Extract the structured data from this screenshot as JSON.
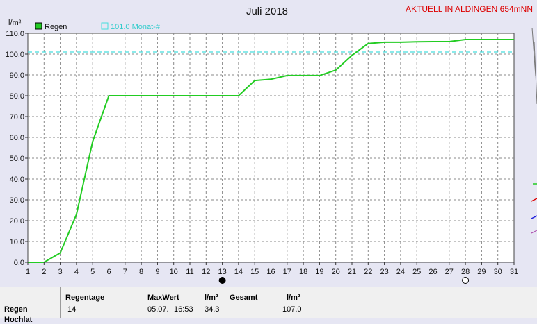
{
  "chart_data": {
    "type": "line",
    "title": "Juli 2018",
    "station_label": "AKTUELL IN ALDINGEN 654mNN",
    "ylabel": "l/m²",
    "ylim": [
      0,
      110
    ],
    "yticks": [
      "0.0",
      "10.0",
      "20.0",
      "30.0",
      "40.0",
      "50.0",
      "60.0",
      "70.0",
      "80.0",
      "90.0",
      "100.0",
      "110.0"
    ],
    "xlim": [
      1,
      31
    ],
    "xticks": [
      "1",
      "2",
      "3",
      "4",
      "5",
      "6",
      "7",
      "8",
      "9",
      "10",
      "11",
      "12",
      "13",
      "14",
      "15",
      "16",
      "17",
      "18",
      "19",
      "20",
      "21",
      "22",
      "23",
      "24",
      "25",
      "26",
      "27",
      "28",
      "29",
      "30",
      "31"
    ],
    "grid": true,
    "legend_position": "top-left",
    "series": [
      {
        "name": "Regen",
        "color": "#22cc22",
        "x": [
          1,
          2,
          3,
          4,
          5,
          6,
          7,
          8,
          9,
          10,
          11,
          12,
          13,
          14,
          15,
          16,
          17,
          18,
          19,
          20,
          21,
          22,
          23,
          24,
          25,
          26,
          27,
          28,
          29,
          30,
          31
        ],
        "y": [
          0,
          0,
          4.5,
          23,
          58,
          80,
          80,
          80,
          80,
          80,
          80,
          80,
          80,
          80,
          87.3,
          87.9,
          89.7,
          89.7,
          89.7,
          92.3,
          99.4,
          105.1,
          105.7,
          105.7,
          105.9,
          106.0,
          106.0,
          107.0,
          107.0,
          107.0,
          107.0
        ]
      }
    ],
    "reference_line": {
      "label": "101.0 Monat-#",
      "value": 101.0,
      "color": "#44dddd"
    },
    "markers": [
      {
        "x": 13,
        "kind": "filled-circle"
      },
      {
        "x": 28,
        "kind": "open-circle"
      }
    ]
  },
  "footer": {
    "row_label": "Regen",
    "row_label_2": "Hochlat",
    "regentage_label": "Regentage",
    "regentage_value": "14",
    "maxwert_label": "MaxWert",
    "maxwert_unit": "l/m²",
    "maxwert_date": "05.07.",
    "maxwert_time": "16:53",
    "maxwert_value": "34.3",
    "gesamt_label": "Gesamt",
    "gesamt_unit": "l/m²",
    "gesamt_value": "107.0"
  }
}
